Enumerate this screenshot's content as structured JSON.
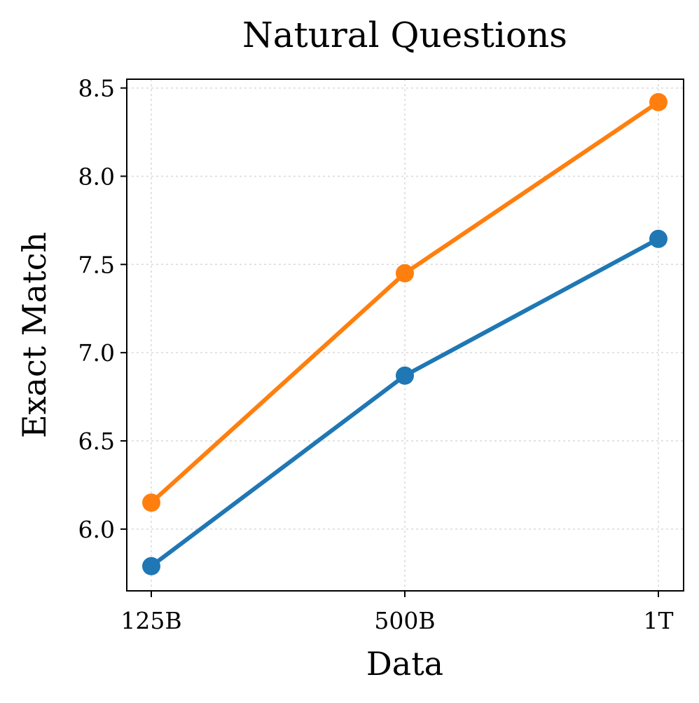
{
  "chart_data": {
    "type": "line",
    "title": "Natural Questions",
    "xlabel": "Data",
    "ylabel": "Exact Match",
    "categories": [
      "125B",
      "500B",
      "1T"
    ],
    "yticks": [
      "6.0",
      "6.5",
      "7.0",
      "7.5",
      "8.0",
      "8.5"
    ],
    "ylim": [
      5.65,
      8.55
    ],
    "grid": true,
    "legend": "none",
    "series": [
      {
        "values": [
          5.79,
          6.87,
          7.645
        ],
        "color": "#1f77b4"
      },
      {
        "values": [
          6.15,
          7.45,
          8.42
        ],
        "color": "#ff7f0e"
      }
    ]
  }
}
